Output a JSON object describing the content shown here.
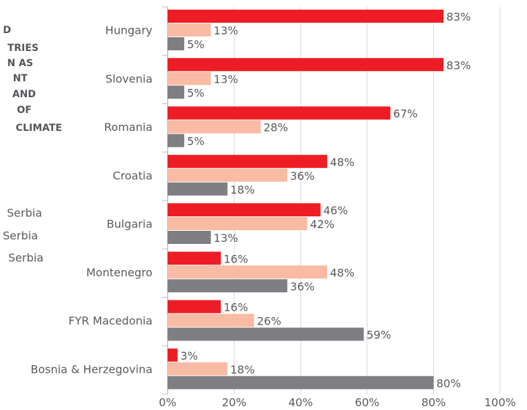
{
  "chart_data": {
    "type": "bar",
    "orientation": "horizontal",
    "title_lines": [
      "D",
      "TRIES",
      "N AS",
      "NT",
      "AND",
      "OF",
      "CLIMATE"
    ],
    "categories": [
      "Hungary",
      "Slovenia",
      "Romania",
      "Croatia",
      "Bulgaria",
      "Montenegro",
      "FYR Macedonia",
      "Bosnia & Herzegovina"
    ],
    "series": [
      {
        "name": "Serbia",
        "color": "#ee1d25",
        "values": [
          83,
          83,
          67,
          48,
          46,
          16,
          16,
          3
        ],
        "value_labels": [
          "83%",
          "83%",
          "67%",
          "48%",
          "46%",
          "16%",
          "16%",
          "3%"
        ]
      },
      {
        "name": "Serbia",
        "color": "#f9bba4",
        "values": [
          13,
          13,
          28,
          36,
          42,
          48,
          26,
          18
        ],
        "value_labels": [
          "13%",
          "13%",
          "28%",
          "36%",
          "42%",
          "48%",
          "26%",
          "18%"
        ]
      },
      {
        "name": "Serbia",
        "color": "#7e7e83",
        "values": [
          5,
          5,
          5,
          18,
          13,
          36,
          59,
          80
        ],
        "value_labels": [
          "5%",
          "5%",
          "5%",
          "18%",
          "13%",
          "36%",
          "59%",
          "80%"
        ]
      }
    ],
    "xlim": [
      0,
      100
    ],
    "xticks": [
      {
        "value": 0,
        "label": "0%"
      },
      {
        "value": 20,
        "label": "20%"
      },
      {
        "value": 40,
        "label": "40%"
      },
      {
        "value": 60,
        "label": "60%"
      },
      {
        "value": 80,
        "label": "80%"
      },
      {
        "value": 100,
        "label": "100%"
      }
    ],
    "grid": true
  }
}
